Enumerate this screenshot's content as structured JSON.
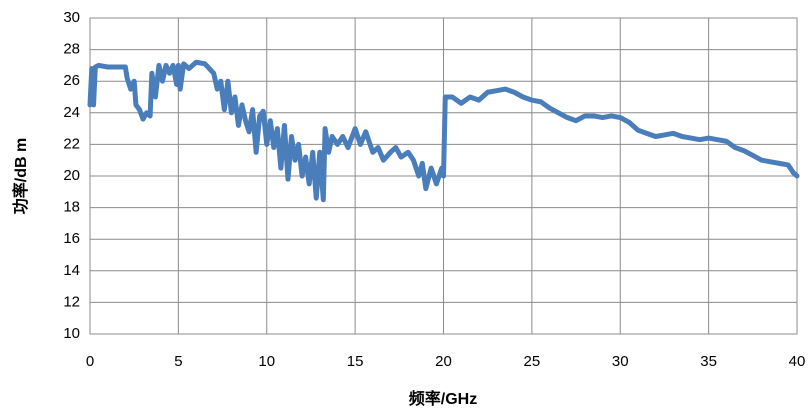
{
  "chart_data": {
    "type": "line",
    "xlabel": "频率/GHz",
    "ylabel": "功率/dB m",
    "x": [
      0,
      0.1,
      0.2,
      0.3,
      0.5,
      1,
      1.5,
      2,
      2.1,
      2.3,
      2.5,
      2.6,
      2.8,
      3,
      3.2,
      3.4,
      3.5,
      3.7,
      3.9,
      4.1,
      4.3,
      4.5,
      4.7,
      4.9,
      5,
      5.1,
      5.3,
      5.6,
      6,
      6.5,
      7,
      7.2,
      7.4,
      7.6,
      7.8,
      8,
      8.2,
      8.4,
      8.6,
      8.8,
      9,
      9.2,
      9.4,
      9.6,
      9.8,
      10,
      10.2,
      10.4,
      10.6,
      10.8,
      11,
      11.2,
      11.4,
      11.6,
      11.8,
      12,
      12.2,
      12.4,
      12.6,
      12.8,
      13,
      13.2,
      13.3,
      13.5,
      13.7,
      14,
      14.3,
      14.6,
      15,
      15.3,
      15.6,
      16,
      16.3,
      16.6,
      17,
      17.3,
      17.6,
      18,
      18.3,
      18.6,
      18.8,
      19,
      19.3,
      19.6,
      19.9,
      20,
      20.1,
      20.5,
      21,
      21.5,
      22,
      22.5,
      23,
      23.5,
      24,
      24.5,
      25,
      25.5,
      26,
      26.5,
      27,
      27.5,
      28,
      28.5,
      29,
      29.5,
      30,
      30.5,
      31,
      31.5,
      32,
      32.5,
      33,
      33.5,
      34,
      34.5,
      35,
      35.5,
      36,
      36.5,
      37,
      37.5,
      38,
      38.5,
      39,
      39.5,
      39.8,
      40
    ],
    "values": [
      24.5,
      26.8,
      24.5,
      26.9,
      27,
      26.9,
      26.9,
      26.9,
      26.2,
      25.5,
      26,
      24.5,
      24.2,
      23.6,
      24,
      23.8,
      26.5,
      25,
      27,
      26,
      27,
      26.5,
      27,
      25.8,
      27,
      25.5,
      27.1,
      26.8,
      27.2,
      27.1,
      26.5,
      25.5,
      26,
      24.2,
      26,
      24,
      25,
      23.2,
      24.5,
      23.5,
      22.8,
      24.2,
      21.5,
      23.8,
      24.1,
      22,
      23.5,
      21.8,
      23,
      20.5,
      23.2,
      19.8,
      22.5,
      21,
      22,
      20,
      21.2,
      19.5,
      21.5,
      18.6,
      21.5,
      18.5,
      23,
      21.5,
      22.5,
      22,
      22.5,
      21.8,
      23,
      22,
      22.8,
      21.5,
      21.8,
      21,
      21.5,
      21.8,
      21.2,
      21.5,
      21,
      20,
      20.8,
      19.2,
      20.5,
      19.5,
      20.5,
      20,
      25,
      25,
      24.6,
      25,
      24.8,
      25.3,
      25.4,
      25.5,
      25.3,
      25,
      24.8,
      24.7,
      24.3,
      24,
      23.7,
      23.5,
      23.8,
      23.8,
      23.7,
      23.8,
      23.7,
      23.4,
      22.9,
      22.7,
      22.5,
      22.6,
      22.7,
      22.5,
      22.4,
      22.3,
      22.4,
      22.3,
      22.2,
      21.8,
      21.6,
      21.3,
      21,
      20.9,
      20.8,
      20.7,
      20.2,
      20
    ],
    "color": "#4a7ebb",
    "xlim": [
      0,
      40
    ],
    "xticks": [
      0,
      5,
      10,
      15,
      20,
      25,
      30,
      35,
      40
    ],
    "ylim": [
      10,
      30
    ],
    "yticks": [
      10,
      12,
      14,
      16,
      18,
      20,
      22,
      24,
      26,
      28,
      30
    ],
    "grid": true
  }
}
